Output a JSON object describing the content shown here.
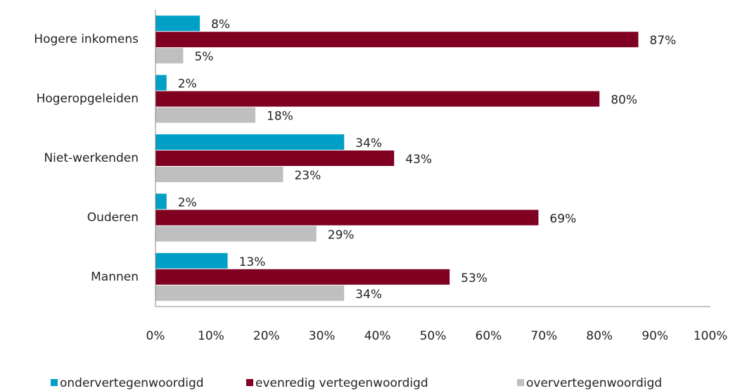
{
  "chart_data": {
    "type": "hbar",
    "categories": [
      "Hogere inkomens",
      "Hogeropgeleiden",
      "Niet-werkenden",
      "Ouderen",
      "Mannen"
    ],
    "series": [
      {
        "name": "ondervertegenwoordigd",
        "color": "#00a0c6",
        "values": [
          8,
          2,
          34,
          2,
          13
        ],
        "value_labels": [
          "8%",
          "2%",
          "34%",
          "2%",
          "13%"
        ]
      },
      {
        "name": "evenredig vertegenwoordigd",
        "color": "#7f0020",
        "values": [
          87,
          80,
          43,
          69,
          53
        ],
        "value_labels": [
          "87%",
          "80%",
          "43%",
          "69%",
          "53%"
        ]
      },
      {
        "name": "oververtegenwoordigd",
        "color": "#bfbfbf",
        "values": [
          5,
          18,
          23,
          29,
          34
        ],
        "value_labels": [
          "5%",
          "18%",
          "23%",
          "29%",
          "34%"
        ]
      }
    ],
    "xlim": [
      0,
      100
    ],
    "xticks": [
      {
        "value": 0,
        "label": "0%"
      },
      {
        "value": 10,
        "label": "10%"
      },
      {
        "value": 20,
        "label": "20%"
      },
      {
        "value": 30,
        "label": "30%"
      },
      {
        "value": 40,
        "label": "40%"
      },
      {
        "value": 50,
        "label": "50%"
      },
      {
        "value": 60,
        "label": "60%"
      },
      {
        "value": 70,
        "label": "70%"
      },
      {
        "value": 80,
        "label": "80%"
      },
      {
        "value": 90,
        "label": "90%"
      },
      {
        "value": 100,
        "label": "100%"
      }
    ],
    "legend": "bottom"
  }
}
